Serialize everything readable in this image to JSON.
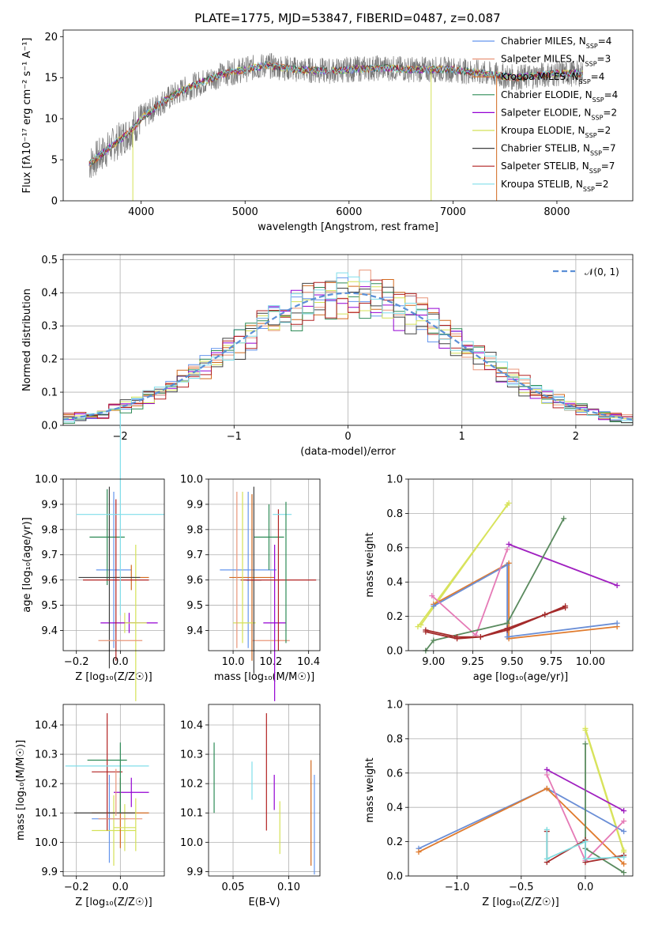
{
  "colors": {
    "palette": [
      "#6495ed",
      "#e9967a",
      "#d2691e",
      "#2e8b57",
      "#9400d3",
      "#d4e157",
      "#404040",
      "#b22222",
      "#80deea"
    ],
    "multi": [
      "#6a8ed6",
      "#e57ab6",
      "#e07b2e",
      "#5a8a5e",
      "#a42a2a",
      "#d8e35c",
      "#80dde0",
      "#606060",
      "#a020c0"
    ]
  },
  "chart_data": [
    {
      "id": "spectrum",
      "type": "line",
      "title": "PLATE=1775, MJD=53847, FIBERID=0487, z=0.087",
      "xlabel": "wavelength [Angstrom, rest frame]",
      "ylabel": "Flux [fλ10⁻¹⁷ erg cm⁻² s⁻¹ A⁻¹]",
      "xlim": [
        3250,
        8730
      ],
      "ylim": [
        0,
        20.8
      ],
      "xticks": [
        4000,
        5000,
        6000,
        7000,
        8000
      ],
      "yticks": [
        0,
        5,
        10,
        15,
        20
      ],
      "grid": false,
      "legend_position": "top-right",
      "continuum": {
        "x": [
          3500,
          3600,
          3700,
          3800,
          3900,
          4000,
          4200,
          4400,
          4600,
          4800,
          5000,
          5200,
          5500,
          5800,
          6000,
          6300,
          6600,
          7000,
          7300,
          7600,
          8000,
          8250
        ],
        "y": [
          4.5,
          5.5,
          6.5,
          7.5,
          8.5,
          10.0,
          12.0,
          13.5,
          14.5,
          15.5,
          16.0,
          16.5,
          16.0,
          15.8,
          16.0,
          16.2,
          16.0,
          16.0,
          15.5,
          15.0,
          15.5,
          15.5
        ]
      },
      "series": [
        {
          "name": "Chabrier MILES, N_SSP=4",
          "label_main": "Chabrier MILES, N",
          "label_sub": "SSP",
          "label_tail": "=4"
        },
        {
          "name": "Salpeter MILES, N_SSP=3",
          "label_main": "Salpeter MILES, N",
          "label_sub": "SSP",
          "label_tail": "=3"
        },
        {
          "name": "Kroupa MILES, N_SSP=4",
          "label_main": "Kroupa MILES, N",
          "label_sub": "SSP",
          "label_tail": "=4"
        },
        {
          "name": "Chabrier ELODIE, N_SSP=4",
          "label_main": "Chabrier ELODIE, N",
          "label_sub": "SSP",
          "label_tail": "=4"
        },
        {
          "name": "Salpeter ELODIE, N_SSP=2",
          "label_main": "Salpeter ELODIE, N",
          "label_sub": "SSP",
          "label_tail": "=2"
        },
        {
          "name": "Kroupa ELODIE, N_SSP=2",
          "label_main": "Kroupa ELODIE, N",
          "label_sub": "SSP",
          "label_tail": "=2"
        },
        {
          "name": "Chabrier STELIB, N_SSP=7",
          "label_main": "Chabrier STELIB, N",
          "label_sub": "SSP",
          "label_tail": "=7"
        },
        {
          "name": "Salpeter STELIB, N_SSP=7",
          "label_main": "Salpeter STELIB, N",
          "label_sub": "SSP",
          "label_tail": "=7"
        },
        {
          "name": "Kroupa STELIB, N_SSP=2",
          "label_main": "Kroupa STELIB, N",
          "label_sub": "SSP",
          "label_tail": "=2"
        }
      ],
      "drops": [
        {
          "x": 3920,
          "color_index": 5
        },
        {
          "x": 6790,
          "color_index": 5
        },
        {
          "x": 7420,
          "color_index": 2
        }
      ]
    },
    {
      "id": "residuals",
      "type": "step-histogram",
      "xlabel": "(data-model)/error",
      "ylabel": "Normed distribution",
      "xlim": [
        -2.5,
        2.5
      ],
      "ylim": [
        0,
        0.515
      ],
      "xticks": [
        -2,
        -1,
        0,
        1,
        2
      ],
      "yticks": [
        0.0,
        0.1,
        0.2,
        0.3,
        0.4,
        0.5
      ],
      "grid": true,
      "bin_width": 0.1,
      "reference": {
        "name": "N(0,1)",
        "label": "𝒩(0, 1)",
        "color": "#5b8fd6",
        "style": "dashed"
      },
      "legend_position": "top-right"
    },
    {
      "id": "age-vs-Z",
      "type": "errorbar",
      "xlabel": "Z [log₁₀(Z/Z☉)]",
      "ylabel": "age  [log₁₀(age/yr)]",
      "xlim": [
        -0.26,
        0.2
      ],
      "ylim": [
        9.32,
        10.0
      ],
      "xticks": [
        -0.2,
        0.0
      ],
      "xticklabels": [
        "−0.2",
        "0.0"
      ],
      "yticks": [
        9.4,
        9.5,
        9.6,
        9.7,
        9.8,
        9.9,
        10.0
      ],
      "grid": true,
      "points": [
        {
          "x": -0.03,
          "xerr": 0.08,
          "y": 9.64,
          "yerr": 0.31,
          "c": 0
        },
        {
          "x": 0.02,
          "xerr": 0.05,
          "y": 9.43,
          "yerr": 0.04,
          "c": 5
        },
        {
          "x": 0.05,
          "xerr": 0.08,
          "y": 9.61,
          "yerr": 0.05,
          "c": 2
        },
        {
          "x": -0.06,
          "xerr": 0.08,
          "y": 9.77,
          "yerr": 0.19,
          "c": 3
        },
        {
          "x": 0.04,
          "xerr": 0.13,
          "y": 9.43,
          "yerr": 0.04,
          "c": 4
        },
        {
          "x": 0.07,
          "xerr": 0.05,
          "y": 9.43,
          "yerr": 0.31,
          "c": 5
        },
        {
          "x": -0.05,
          "xerr": 0.14,
          "y": 9.61,
          "yerr": 0.36,
          "c": 6
        },
        {
          "x": -0.02,
          "xerr": 0.15,
          "y": 9.6,
          "yerr": 0.32,
          "c": 7
        },
        {
          "x": 0.0,
          "xerr": 0.2,
          "y": 9.86,
          "yerr": 0.4,
          "c": 8
        },
        {
          "x": 0.0,
          "xerr": 0.1,
          "y": 9.36,
          "yerr": 0.0,
          "c": 1
        }
      ]
    },
    {
      "id": "age-vs-mass",
      "type": "errorbar",
      "xlabel": "mass [log₁₀(M/M☉)]",
      "xlim": [
        9.87,
        10.46
      ],
      "ylim": [
        9.32,
        10.0
      ],
      "xticks": [
        10.0,
        10.2,
        10.4
      ],
      "xticklabels": [
        "10.0",
        "10.2",
        "10.4"
      ],
      "yticks": [
        9.4,
        9.5,
        9.6,
        9.7,
        9.8,
        9.9,
        10.0
      ],
      "grid": true,
      "points": [
        {
          "x": 10.08,
          "xerr": 0.15,
          "y": 9.64,
          "yerr": 0.31,
          "c": 0
        },
        {
          "x": 10.1,
          "xerr": 0.12,
          "y": 9.61,
          "yerr": 0.33,
          "c": 2
        },
        {
          "x": 10.2,
          "xerr": 0.1,
          "y": 9.36,
          "yerr": 0.0,
          "c": 1
        },
        {
          "x": 10.19,
          "xerr": 0.08,
          "y": 9.77,
          "yerr": 0.13,
          "c": 3
        },
        {
          "x": 10.22,
          "xerr": 0.06,
          "y": 9.43,
          "yerr": 0.31,
          "c": 4
        },
        {
          "x": 10.06,
          "xerr": 0.06,
          "y": 9.43,
          "yerr": 0.0,
          "c": 5
        },
        {
          "x": 10.11,
          "xerr": 0.04,
          "y": 9.6,
          "yerr": 0.37,
          "c": 6
        },
        {
          "x": 10.24,
          "xerr": 0.2,
          "y": 9.6,
          "yerr": 0.28,
          "c": 7
        },
        {
          "x": 10.26,
          "xerr": 0.05,
          "y": 9.86,
          "yerr": 0.0,
          "c": 8
        },
        {
          "x": 10.05,
          "xerr": 0.0,
          "y": 9.65,
          "yerr": 0.3,
          "c": 5
        },
        {
          "x": 10.02,
          "xerr": 0.0,
          "y": 9.64,
          "yerr": 0.31,
          "c": 1
        },
        {
          "x": 10.28,
          "xerr": 0.0,
          "y": 9.63,
          "yerr": 0.28,
          "c": 3
        }
      ]
    },
    {
      "id": "weight-vs-age",
      "type": "line",
      "xlabel": "age  [log₁₀(age/yr)]",
      "ylabel": "mass weight",
      "xlim": [
        8.84,
        10.27
      ],
      "ylim": [
        0,
        1
      ],
      "xticks": [
        9.0,
        9.25,
        9.5,
        9.75,
        10.0
      ],
      "xticklabels": [
        "9.00",
        "9.25",
        "9.50",
        "9.75",
        "10.00"
      ],
      "yticks": [
        0.0,
        0.2,
        0.4,
        0.6,
        0.8,
        1.0
      ],
      "grid": true,
      "series": [
        {
          "c": 5,
          "x": [
            8.9,
            9.48
          ],
          "y": [
            0.14,
            0.86
          ]
        },
        {
          "c": 5,
          "x": [
            8.92,
            9.47
          ],
          "y": [
            0.15,
            0.85
          ]
        },
        {
          "c": 8,
          "x": [
            9.48,
            10.17
          ],
          "y": [
            0.62,
            0.38
          ]
        },
        {
          "c": 2,
          "x": [
            9.0,
            9.48,
            9.48,
            10.17
          ],
          "y": [
            0.27,
            0.51,
            0.07,
            0.14
          ]
        },
        {
          "c": 0,
          "x": [
            9.0,
            9.47,
            9.47,
            10.17
          ],
          "y": [
            0.26,
            0.5,
            0.08,
            0.16
          ]
        },
        {
          "c": 1,
          "x": [
            8.99,
            9.27,
            9.47
          ],
          "y": [
            0.32,
            0.09,
            0.59
          ]
        },
        {
          "c": 3,
          "x": [
            8.95,
            9.0,
            9.47,
            9.83
          ],
          "y": [
            0.0,
            0.06,
            0.16,
            0.77
          ]
        },
        {
          "c": 4,
          "x": [
            8.95,
            9.15,
            9.3,
            9.47,
            9.71,
            9.84
          ],
          "y": [
            0.12,
            0.08,
            0.08,
            0.13,
            0.21,
            0.26
          ]
        },
        {
          "c": 4,
          "x": [
            8.95,
            9.15,
            9.3,
            9.47,
            9.71,
            9.84
          ],
          "y": [
            0.11,
            0.07,
            0.08,
            0.12,
            0.21,
            0.25
          ]
        }
      ]
    },
    {
      "id": "mass-vs-Z",
      "type": "errorbar",
      "xlabel": "Z [log₁₀(Z/Z☉)]",
      "ylabel": "mass [log₁₀(M/M☉)]",
      "xlim": [
        -0.26,
        0.2
      ],
      "ylim": [
        9.885,
        10.47
      ],
      "xticks": [
        -0.2,
        0.0
      ],
      "xticklabels": [
        "−0.2",
        "0.0"
      ],
      "yticks": [
        9.9,
        10.0,
        10.1,
        10.2,
        10.3,
        10.4
      ],
      "grid": true,
      "points": [
        {
          "x": -0.05,
          "xerr": 0.08,
          "y": 10.08,
          "yerr": 0.15,
          "c": 0
        },
        {
          "x": -0.03,
          "xerr": 0.1,
          "y": 10.04,
          "yerr": 0.12,
          "c": 5
        },
        {
          "x": 0.0,
          "xerr": 0.13,
          "y": 10.1,
          "yerr": 0.12,
          "c": 2
        },
        {
          "x": -0.06,
          "xerr": 0.09,
          "y": 10.28,
          "yerr": 0.0,
          "c": 3
        },
        {
          "x": 0.05,
          "xerr": 0.08,
          "y": 10.17,
          "yerr": 0.05,
          "c": 4
        },
        {
          "x": 0.02,
          "xerr": 0.05,
          "y": 10.05,
          "yerr": 0.08,
          "c": 5
        },
        {
          "x": -0.07,
          "xerr": 0.14,
          "y": 10.1,
          "yerr": 0.0,
          "c": 6
        },
        {
          "x": -0.06,
          "xerr": 0.07,
          "y": 10.24,
          "yerr": 0.2,
          "c": 7
        },
        {
          "x": -0.06,
          "xerr": 0.19,
          "y": 10.26,
          "yerr": 0.0,
          "c": 8
        },
        {
          "x": 0.0,
          "xerr": 0.1,
          "y": 10.08,
          "yerr": 0.0,
          "c": 1
        },
        {
          "x": 0.0,
          "xerr": 0.0,
          "y": 10.22,
          "yerr": 0.12,
          "c": 3
        },
        {
          "x": 0.07,
          "xerr": 0.0,
          "y": 10.06,
          "yerr": 0.09,
          "c": 5
        },
        {
          "x": -0.02,
          "xerr": 0.0,
          "y": 10.17,
          "yerr": 0.08,
          "c": 1
        }
      ]
    },
    {
      "id": "mass-vs-EBV",
      "type": "errorbar",
      "xlabel": "E(B-V)",
      "xlim": [
        0.028,
        0.128
      ],
      "ylim": [
        9.885,
        10.47
      ],
      "xticks": [
        0.05,
        0.1
      ],
      "xticklabels": [
        "0.05",
        "0.10"
      ],
      "yticks": [
        9.9,
        10.0,
        10.1,
        10.2,
        10.3,
        10.4
      ],
      "grid": true,
      "points": [
        {
          "x": 0.033,
          "xerr": 0.0,
          "y": 10.22,
          "yerr": 0.12,
          "c": 3
        },
        {
          "x": 0.067,
          "xerr": 0.0,
          "y": 10.21,
          "yerr": 0.065,
          "c": 8
        },
        {
          "x": 0.08,
          "xerr": 0.0,
          "y": 10.24,
          "yerr": 0.2,
          "c": 7
        },
        {
          "x": 0.087,
          "xerr": 0.0,
          "y": 10.17,
          "yerr": 0.06,
          "c": 4
        },
        {
          "x": 0.092,
          "xerr": 0.0,
          "y": 10.05,
          "yerr": 0.09,
          "c": 5
        },
        {
          "x": 0.12,
          "xerr": 0.0,
          "y": 10.1,
          "yerr": 0.18,
          "c": 2
        },
        {
          "x": 0.123,
          "xerr": 0.0,
          "y": 10.06,
          "yerr": 0.17,
          "c": 0
        }
      ]
    },
    {
      "id": "weight-vs-Z",
      "type": "line",
      "xlabel": "Z [log₁₀(Z/Z☉)]",
      "ylabel": "mass weight",
      "xlim": [
        -1.38,
        0.37
      ],
      "ylim": [
        0,
        1
      ],
      "xticks": [
        -1.0,
        -0.5,
        0.0
      ],
      "xticklabels": [
        "−1.0",
        "−0.5",
        "0.0"
      ],
      "yticks": [
        0.0,
        0.2,
        0.4,
        0.6,
        0.8,
        1.0
      ],
      "grid": true,
      "series": [
        {
          "c": 5,
          "x": [
            0.0,
            0.3
          ],
          "y": [
            0.86,
            0.15
          ]
        },
        {
          "c": 5,
          "x": [
            0.0,
            0.3
          ],
          "y": [
            0.85,
            0.14
          ]
        },
        {
          "c": 8,
          "x": [
            -0.3,
            0.3
          ],
          "y": [
            0.62,
            0.38
          ]
        },
        {
          "c": 0,
          "x": [
            -1.3,
            -0.3,
            0.3
          ],
          "y": [
            0.16,
            0.51,
            0.26
          ]
        },
        {
          "c": 2,
          "x": [
            -1.3,
            -0.3,
            0.3
          ],
          "y": [
            0.14,
            0.51,
            0.07
          ]
        },
        {
          "c": 1,
          "x": [
            -0.3,
            0.0,
            0.3
          ],
          "y": [
            0.59,
            0.09,
            0.32
          ]
        },
        {
          "c": 3,
          "x": [
            0.0,
            0.0,
            0.3
          ],
          "y": [
            0.77,
            0.16,
            0.02
          ]
        },
        {
          "c": 4,
          "x": [
            -0.3,
            -0.3,
            0.0,
            0.0,
            0.3
          ],
          "y": [
            0.26,
            0.08,
            0.21,
            0.08,
            0.12
          ]
        },
        {
          "c": 6,
          "x": [
            -0.3,
            -0.3,
            0.0,
            0.0,
            0.3
          ],
          "y": [
            0.27,
            0.1,
            0.2,
            0.1,
            0.11
          ]
        }
      ]
    }
  ]
}
